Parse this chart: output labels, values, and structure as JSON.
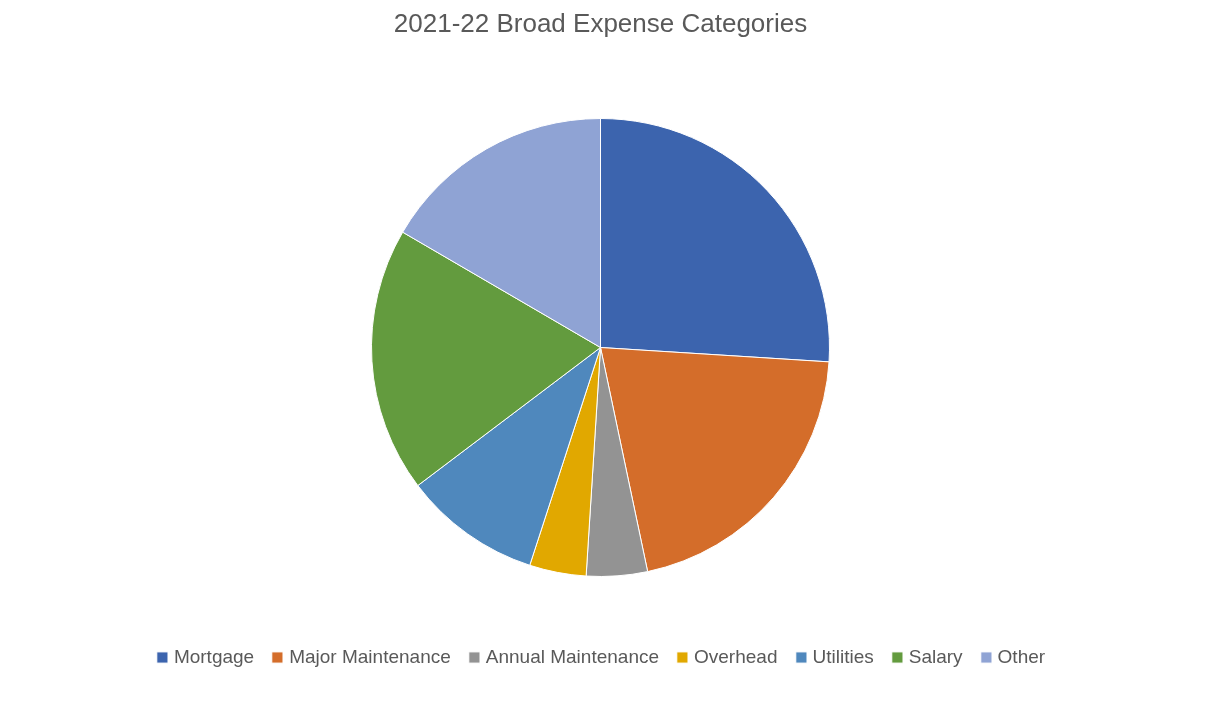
{
  "chart_data": {
    "type": "pie",
    "title": "2021-22 Broad Expense Categories",
    "categories": [
      "Mortgage",
      "Major Maintenance",
      "Annual Maintenance",
      "Overhead",
      "Utilities",
      "Salary",
      "Other"
    ],
    "values": [
      26,
      20.7,
      4.3,
      4,
      9.7,
      18.7,
      16.6
    ],
    "colors": [
      "#3c64ae",
      "#d46d2a",
      "#939393",
      "#e1a800",
      "#4f88bd",
      "#639b3e",
      "#8fa3d4"
    ],
    "legend": "bottom"
  }
}
